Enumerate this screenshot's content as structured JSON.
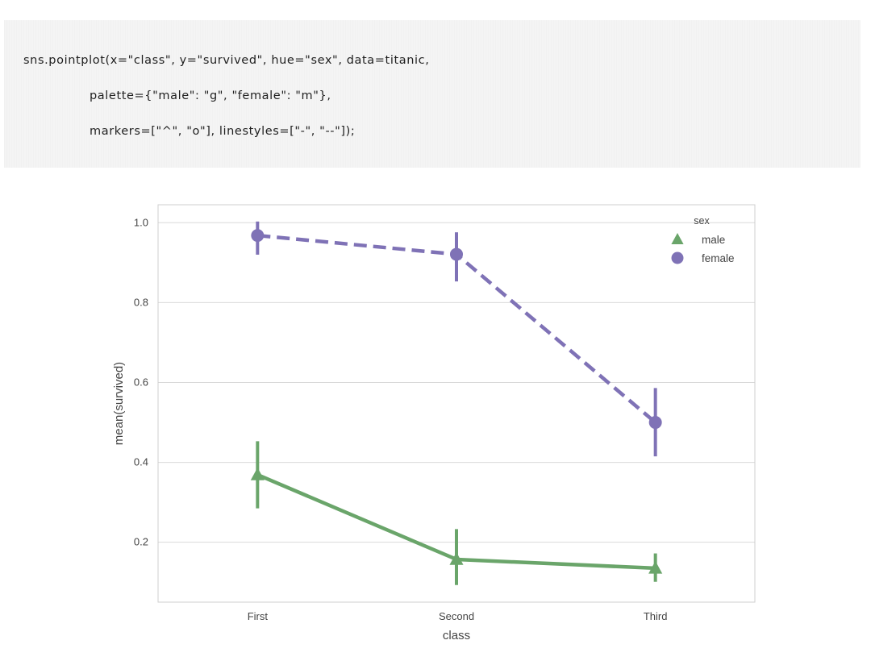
{
  "code": {
    "line1": "sns.pointplot(x=\"class\", y=\"survived\", hue=\"sex\", data=titanic,",
    "line2": "palette={\"male\": \"g\", \"female\": \"m\"},",
    "line3": "markers=[\"^\", \"o\"], linestyles=[\"-\", \"--\"]);"
  },
  "chart_data": {
    "type": "line",
    "categories": [
      "First",
      "Second",
      "Third"
    ],
    "xlabel": "class",
    "ylabel": "mean(survived)",
    "ylim": [
      0.05,
      1.045
    ],
    "yticks": [
      0.2,
      0.4,
      0.6,
      0.8,
      1.0
    ],
    "ytick_labels": [
      "0.2",
      "0.4",
      "0.6",
      "0.8",
      "1.0"
    ],
    "grid": true,
    "legend": {
      "title": "sex",
      "placement": "top-right"
    },
    "series": [
      {
        "name": "male",
        "values": [
          0.369,
          0.157,
          0.135
        ],
        "ci_low": [
          0.285,
          0.093,
          0.101
        ],
        "ci_high": [
          0.453,
          0.233,
          0.172
        ],
        "color": "#6aa56a",
        "marker": "triangle",
        "linestyle": "solid"
      },
      {
        "name": "female",
        "values": [
          0.968,
          0.921,
          0.5
        ],
        "ci_low": [
          0.92,
          0.853,
          0.415
        ],
        "ci_high": [
          1.003,
          0.976,
          0.586
        ],
        "color": "#7f72b6",
        "marker": "circle",
        "linestyle": "dashed"
      }
    ]
  }
}
